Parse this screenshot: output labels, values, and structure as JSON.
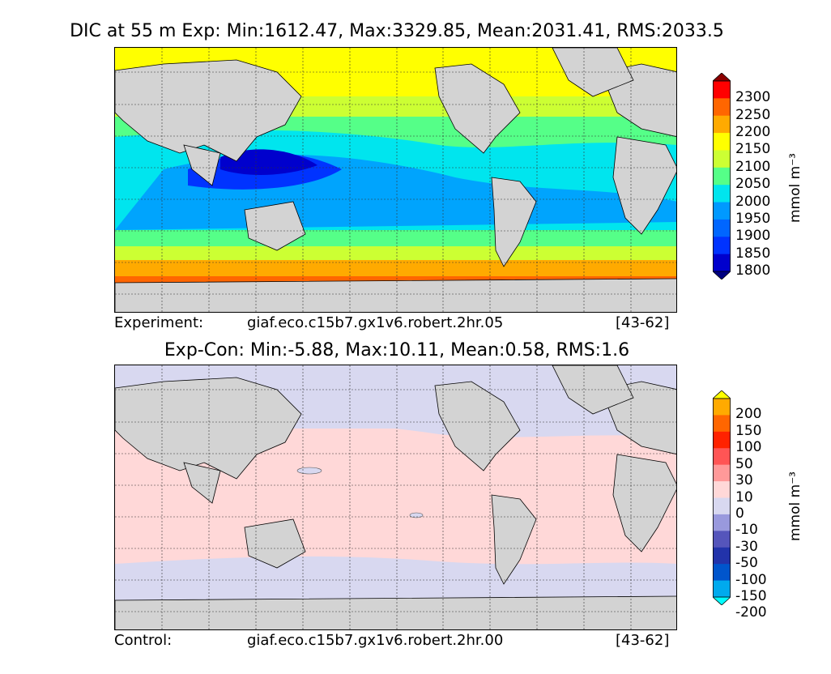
{
  "panel_top": {
    "title": "DIC at 55 m Exp: Min:1612.47, Max:3329.85, Mean:2031.41, RMS:2033.5",
    "footer_label": "Experiment:",
    "footer_case": "giaf.eco.c15b7.gx1v6.robert.2hr.05",
    "footer_years": "[43-62]",
    "colorbar": {
      "unit": "mmol m⁻³",
      "ticks": [
        "1800",
        "1850",
        "1900",
        "1950",
        "2000",
        "2050",
        "2100",
        "2150",
        "2200",
        "2250",
        "2300"
      ],
      "colors": [
        "#000080",
        "#0000cd",
        "#0033ff",
        "#0066ff",
        "#0099ff",
        "#00e5ee",
        "#55ff88",
        "#ccff33",
        "#ffff00",
        "#ffaa00",
        "#ff6600",
        "#ff0000",
        "#8b0000"
      ]
    }
  },
  "panel_bottom": {
    "title": "Exp-Con: Min:-5.88, Max:10.11, Mean:0.58, RMS:1.6",
    "footer_label": "Control:",
    "footer_case": "giaf.eco.c15b7.gx1v6.robert.2hr.00",
    "footer_years": "[43-62]",
    "colorbar": {
      "unit": "mmol m⁻³",
      "ticks": [
        "200",
        "150",
        "100",
        "50",
        "30",
        "10",
        "0",
        "-10",
        "-30",
        "-50",
        "-100",
        "-150",
        "-200"
      ],
      "colors": [
        "#ffff00",
        "#ffaa00",
        "#ff6600",
        "#ff2200",
        "#ff5555",
        "#ff9999",
        "#ffd8d8",
        "#d8d8f0",
        "#9999dd",
        "#5555bb",
        "#2233aa",
        "#0055cc",
        "#00aaee",
        "#00ffff"
      ]
    }
  },
  "colors": {
    "land": "#d3d3d3",
    "neutral_pos": "#ffd8d8",
    "neutral_neg": "#d8d8f0"
  }
}
